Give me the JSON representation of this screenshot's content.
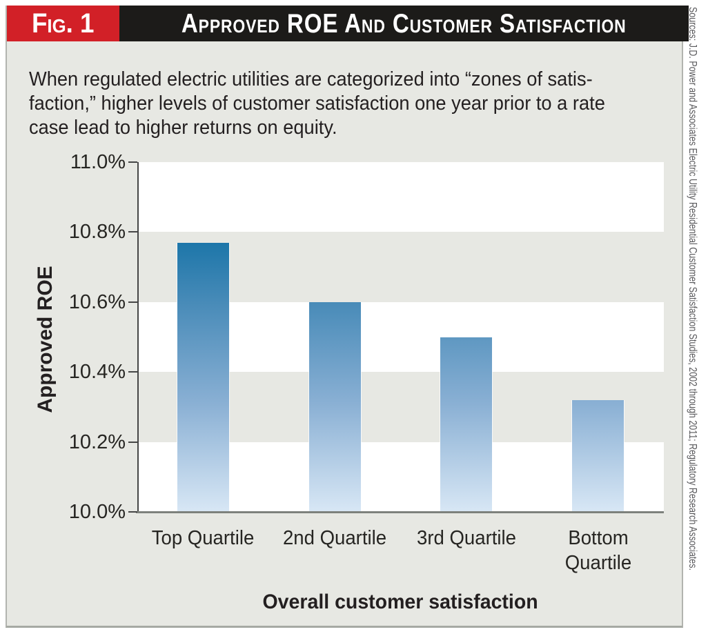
{
  "figure": {
    "label": "Fig. 1",
    "title": "Approved ROE And Customer Satisfaction",
    "description_lines": [
      "When regulated electric utilities are categorized into “zones of satis-",
      "faction,” higher levels of customer satisfaction one year prior to a rate",
      "case lead to higher returns on equity."
    ],
    "source_note": "Sources: J.D. Power and Associates  Electric Utility Residential Customer Satisfaction Studies, 2002 through 2011; Regulatory Research Associates."
  },
  "chart_data": {
    "type": "bar",
    "title": "Approved ROE And Customer Satisfaction",
    "categories": [
      "Top Quartile",
      "2nd Quartile",
      "3rd Quartile",
      "Bottom Quartile"
    ],
    "categories_display": [
      [
        "Top Quartile"
      ],
      [
        "2nd Quartile"
      ],
      [
        "3rd Quartile"
      ],
      [
        "Bottom",
        "Quartile"
      ]
    ],
    "values": [
      10.77,
      10.6,
      10.5,
      10.32
    ],
    "unit": "%",
    "xlabel": "Overall customer satisfaction",
    "ylabel": "Approved ROE",
    "ylim": [
      10.0,
      11.0
    ],
    "ytick_values": [
      10.0,
      10.2,
      10.4,
      10.6,
      10.8,
      11.0
    ],
    "ytick_labels": [
      "10.0%",
      "10.2%",
      "10.4%",
      "10.6%",
      "10.8%",
      "11.0%"
    ],
    "white_bands": [
      [
        10.8,
        11.0
      ],
      [
        10.4,
        10.6
      ],
      [
        10.0,
        10.2
      ]
    ],
    "grid": "alternating white/gray horizontal background bands",
    "legend": "none",
    "bar_gradient_top_to_bottom": [
      "#0f639a",
      "#1d76a9",
      "#4a8cb9",
      "#8ab0d4",
      "#d8e7f5"
    ]
  },
  "colors": {
    "figure_bg": "#e7e8e3",
    "page_bg": "#ffffff",
    "header_red": "#d22027",
    "header_black": "#1c1b19",
    "header_text": "#ffffff",
    "body_text": "#231f20",
    "band_white": "#ffffff",
    "axis_line": "#454545",
    "baseline": "#7d817c",
    "source_text": "#57575a"
  }
}
